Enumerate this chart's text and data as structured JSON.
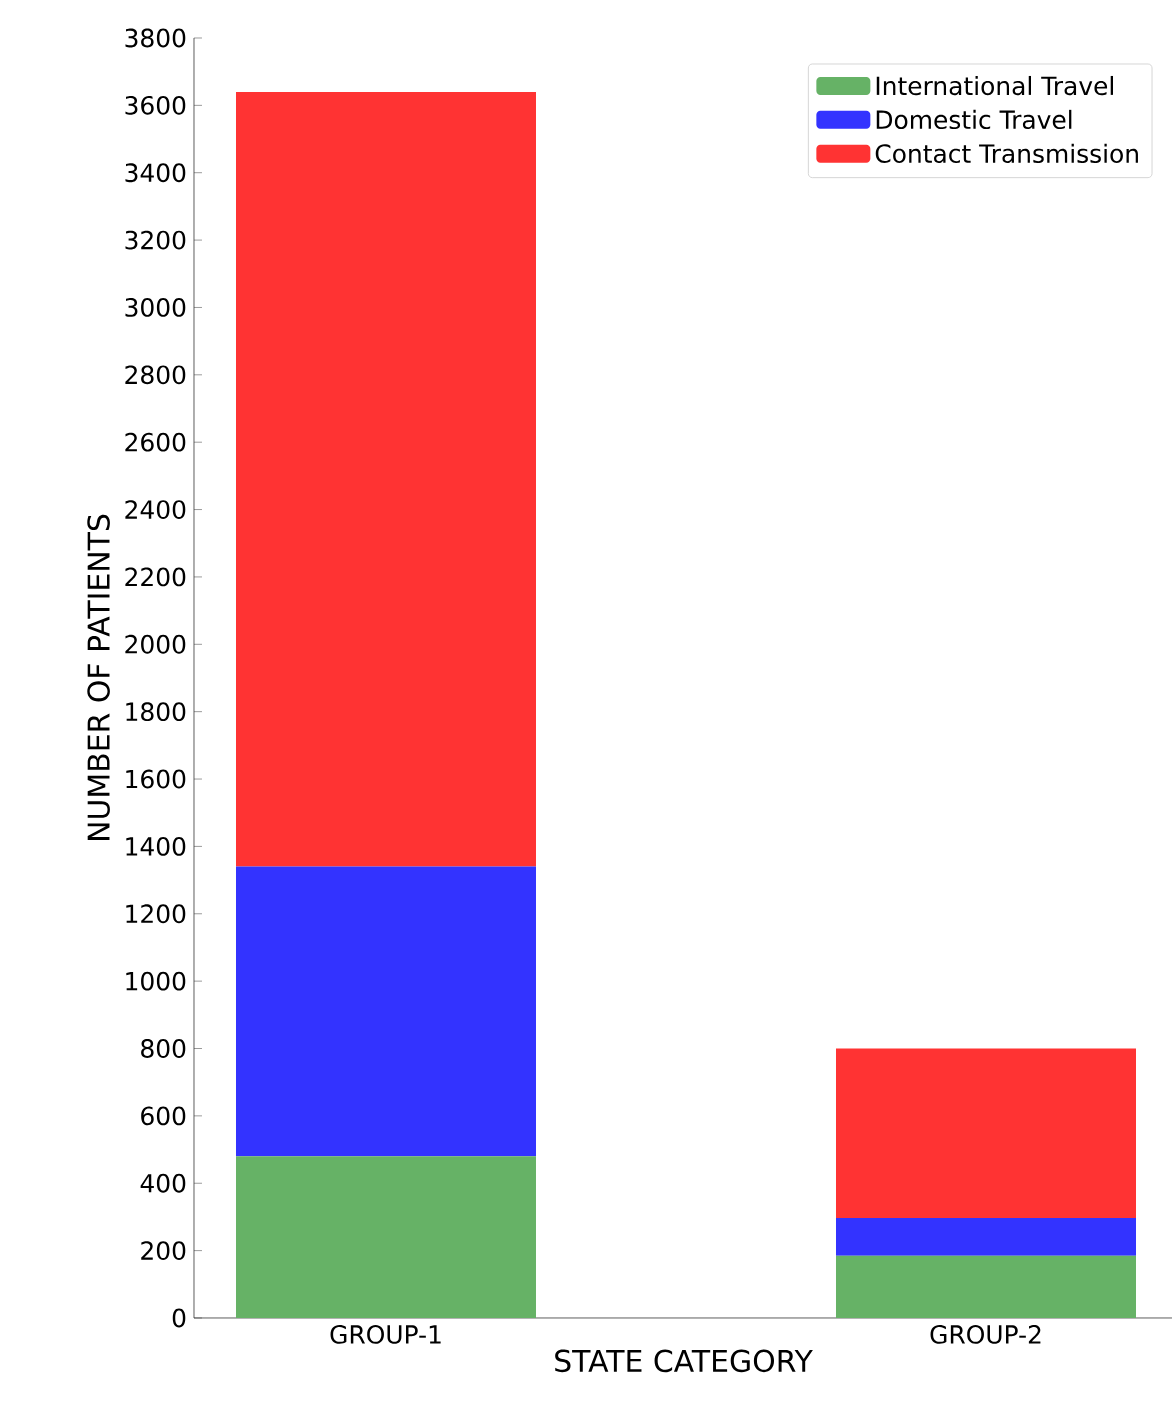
{
  "chart_data": {
    "type": "bar",
    "stacked": true,
    "xlabel": "STATE CATEGORY",
    "ylabel": "NUMBER OF PATIENTS",
    "categories": [
      "GROUP-1",
      "GROUP-2"
    ],
    "series": [
      {
        "name": "International Travel",
        "color": "#66b266",
        "values": [
          480,
          185
        ]
      },
      {
        "name": "Domestic Travel",
        "color": "#3333ff",
        "values": [
          860,
          112
        ]
      },
      {
        "name": "Contact Transmission",
        "color": "#ff3333",
        "values": [
          2300,
          503
        ]
      }
    ],
    "ylim": [
      0,
      3800
    ],
    "yticks": [
      0,
      200,
      400,
      600,
      800,
      1000,
      1200,
      1400,
      1600,
      1800,
      2000,
      2200,
      2400,
      2600,
      2800,
      3000,
      3200,
      3400,
      3600,
      3800
    ],
    "legend": "top right"
  }
}
